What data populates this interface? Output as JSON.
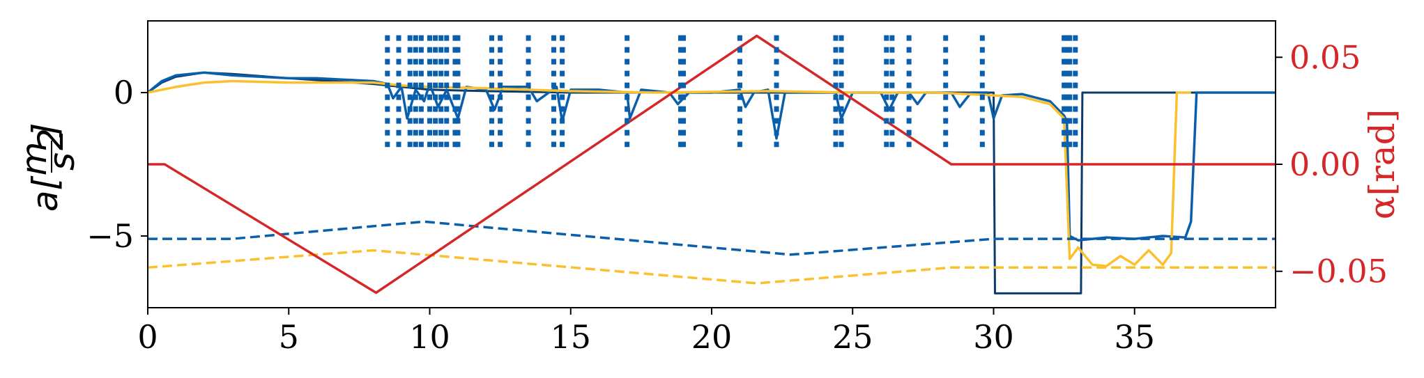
{
  "chart_data": {
    "type": "line",
    "title": "",
    "xlabel": "",
    "ylabel_left": "a[m/s²]",
    "ylabel_left_parts": {
      "base": "a",
      "num": "m",
      "den": "s",
      "exp": "2"
    },
    "ylabel_right": "α[rad]",
    "xlim": [
      0,
      40
    ],
    "ylim_left": [
      -7.5,
      2.5
    ],
    "ylim_right": [
      -0.067,
      0.067
    ],
    "x_ticks": [
      0,
      5,
      10,
      15,
      20,
      25,
      30,
      35
    ],
    "x_tick_labels": [
      "0",
      "5",
      "10",
      "15",
      "20",
      "25",
      "30",
      "35"
    ],
    "y_left_ticks": [
      0,
      -5
    ],
    "y_left_tick_labels": [
      "0",
      "−5"
    ],
    "y_right_ticks": [
      0.05,
      0.0,
      -0.05
    ],
    "y_right_tick_labels": [
      "0.05",
      "0.00",
      "−0.05"
    ],
    "colors": {
      "dark_blue": "#0b3a6e",
      "blue": "#0a5fad",
      "yellow": "#fbc02d",
      "red": "#d62728",
      "axis": "#000000"
    },
    "grid": false,
    "series": [
      {
        "axis": "left",
        "color": "dark_blue",
        "style": "solid",
        "width": 3,
        "points": [
          [
            0,
            0
          ],
          [
            0.5,
            0.35
          ],
          [
            1,
            0.55
          ],
          [
            2,
            0.7
          ],
          [
            3,
            0.65
          ],
          [
            5,
            0.5
          ],
          [
            8,
            0.3
          ],
          [
            9,
            0.2
          ],
          [
            10,
            0.1
          ],
          [
            12,
            0.05
          ],
          [
            15,
            0
          ],
          [
            30,
            0
          ],
          [
            30.05,
            -7
          ],
          [
            33.1,
            -7
          ],
          [
            33.15,
            0
          ],
          [
            40,
            0
          ]
        ]
      },
      {
        "axis": "left",
        "color": "blue",
        "style": "solid",
        "width": 3.5,
        "points": [
          [
            0,
            0
          ],
          [
            0.5,
            0.4
          ],
          [
            1,
            0.6
          ],
          [
            1.5,
            0.65
          ],
          [
            2,
            0.7
          ],
          [
            3,
            0.6
          ],
          [
            4,
            0.55
          ],
          [
            5,
            0.5
          ],
          [
            6,
            0.5
          ],
          [
            7,
            0.45
          ],
          [
            8,
            0.4
          ],
          [
            8.5,
            0.3
          ],
          [
            8.7,
            -0.2
          ],
          [
            9,
            0.2
          ],
          [
            9.2,
            -0.9
          ],
          [
            9.5,
            0.1
          ],
          [
            9.8,
            -0.3
          ],
          [
            10,
            0.3
          ],
          [
            10.3,
            -0.5
          ],
          [
            10.6,
            0.1
          ],
          [
            11,
            -0.9
          ],
          [
            11.3,
            0.2
          ],
          [
            12,
            0.1
          ],
          [
            12.3,
            -0.6
          ],
          [
            12.6,
            0.2
          ],
          [
            13.5,
            0.2
          ],
          [
            13.8,
            -0.3
          ],
          [
            14.5,
            0.2
          ],
          [
            14.7,
            -1.0
          ],
          [
            15,
            0.1
          ],
          [
            16,
            0.1
          ],
          [
            17,
            0
          ],
          [
            17.1,
            -0.9
          ],
          [
            17.5,
            0.1
          ],
          [
            18.5,
            0
          ],
          [
            18.8,
            -0.4
          ],
          [
            19.2,
            0
          ],
          [
            20,
            0
          ],
          [
            21,
            0.1
          ],
          [
            21.2,
            -0.5
          ],
          [
            21.5,
            0
          ],
          [
            22,
            0.1
          ],
          [
            22.3,
            -1.6
          ],
          [
            22.6,
            0
          ],
          [
            23.5,
            0
          ],
          [
            24.4,
            0
          ],
          [
            24.6,
            -0.9
          ],
          [
            25,
            0
          ],
          [
            26,
            0
          ],
          [
            26.3,
            -0.6
          ],
          [
            26.6,
            0
          ],
          [
            27,
            0
          ],
          [
            27.3,
            -0.4
          ],
          [
            27.6,
            0
          ],
          [
            28.5,
            0
          ],
          [
            28.8,
            -0.5
          ],
          [
            29.2,
            0
          ],
          [
            29.8,
            0
          ],
          [
            30,
            -0.9
          ],
          [
            30.3,
            -0.1
          ],
          [
            31,
            -0.05
          ],
          [
            32,
            -0.3
          ],
          [
            32.5,
            -0.8
          ],
          [
            32.6,
            -1.0
          ],
          [
            32.7,
            -5.0
          ],
          [
            33,
            -5.15
          ],
          [
            34,
            -5.05
          ],
          [
            35,
            -5.1
          ],
          [
            36,
            -5.0
          ],
          [
            36.8,
            -5.05
          ],
          [
            37,
            -4.5
          ],
          [
            37.2,
            0
          ],
          [
            40,
            0
          ]
        ]
      },
      {
        "axis": "left",
        "color": "yellow",
        "style": "solid",
        "width": 3.5,
        "points": [
          [
            0,
            0
          ],
          [
            1,
            0.2
          ],
          [
            2,
            0.35
          ],
          [
            3,
            0.4
          ],
          [
            5,
            0.35
          ],
          [
            8,
            0.35
          ],
          [
            9,
            0.25
          ],
          [
            10,
            0.2
          ],
          [
            12,
            0.15
          ],
          [
            15,
            0.05
          ],
          [
            18,
            0
          ],
          [
            22,
            0.05
          ],
          [
            25,
            0
          ],
          [
            28,
            0
          ],
          [
            30,
            -0.1
          ],
          [
            31,
            -0.15
          ],
          [
            32,
            -0.4
          ],
          [
            32.5,
            -0.9
          ],
          [
            32.7,
            -5.8
          ],
          [
            33,
            -5.4
          ],
          [
            33.5,
            -6.0
          ],
          [
            34,
            -6.05
          ],
          [
            34.5,
            -5.7
          ],
          [
            35,
            -6.0
          ],
          [
            35.5,
            -5.5
          ],
          [
            36,
            -6.0
          ],
          [
            36.3,
            -5.6
          ],
          [
            36.5,
            0
          ],
          [
            37,
            0
          ]
        ]
      },
      {
        "axis": "left",
        "color": "blue",
        "style": "dashed",
        "width": 3.5,
        "points": [
          [
            0,
            -5.1
          ],
          [
            3,
            -5.1
          ],
          [
            9.8,
            -4.5
          ],
          [
            22.8,
            -5.65
          ],
          [
            30,
            -5.1
          ],
          [
            40,
            -5.1
          ]
        ]
      },
      {
        "axis": "left",
        "color": "yellow",
        "style": "dashed",
        "width": 3.5,
        "points": [
          [
            0,
            -6.1
          ],
          [
            8,
            -5.5
          ],
          [
            21.6,
            -6.65
          ],
          [
            28.5,
            -6.1
          ],
          [
            40,
            -6.1
          ]
        ]
      },
      {
        "axis": "right",
        "color": "red",
        "style": "solid",
        "width": 3.5,
        "points": [
          [
            0,
            0
          ],
          [
            0.6,
            0
          ],
          [
            8.1,
            -0.06
          ],
          [
            21.6,
            0.06
          ],
          [
            28.5,
            0
          ],
          [
            40,
            0
          ]
        ]
      }
    ],
    "event_markers": {
      "color": "blue",
      "y_range": [
        -1.9,
        2.0
      ],
      "x": [
        8.5,
        8.9,
        9.3,
        9.5,
        9.7,
        10.0,
        10.2,
        10.4,
        10.6,
        10.9,
        11.0,
        12.2,
        12.5,
        13.5,
        14.4,
        14.7,
        17.0,
        18.9,
        19.0,
        21.0,
        22.3,
        24.4,
        24.6,
        26.2,
        26.4,
        27.0,
        28.3,
        29.6,
        32.5,
        32.6,
        32.7,
        32.9
      ]
    }
  }
}
